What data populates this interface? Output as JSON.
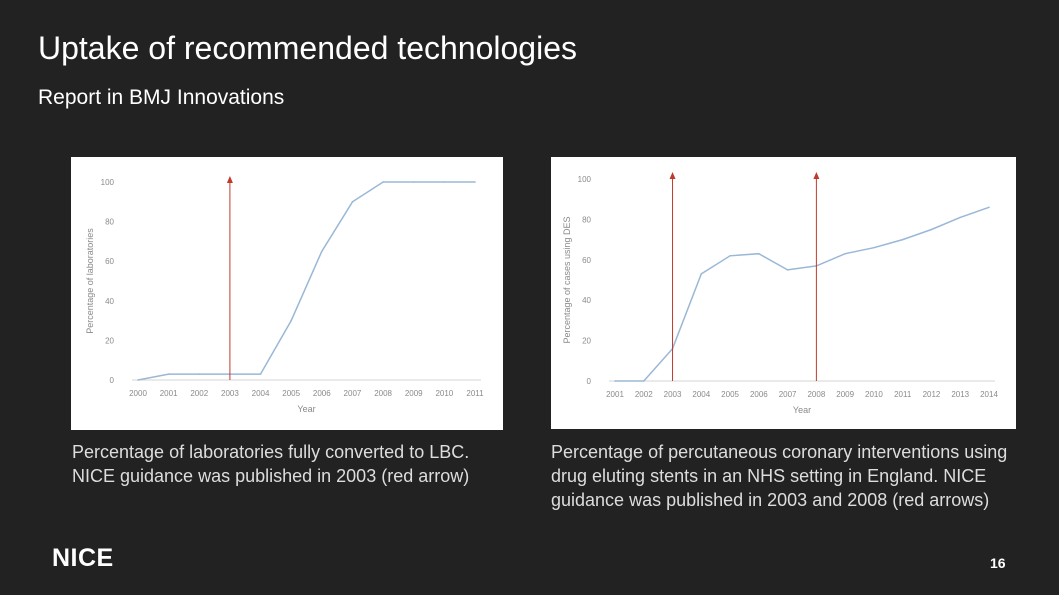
{
  "slide": {
    "title": "Uptake of recommended technologies",
    "subtitle": "Report in BMJ Innovations",
    "logo": "NICE",
    "page_number": "16",
    "caption_left": "Percentage of laboratories fully converted to LBC.  NICE guidance was published in 2003 (red arrow)",
    "caption_right": "Percentage of percutaneous coronary interventions using drug eluting stents in an NHS setting in England. NICE guidance was published in 2003 and 2008 (red arrows)"
  },
  "chart_data": [
    {
      "type": "line",
      "title": "",
      "xlabel": "Year",
      "ylabel": "Percentage of laboratories",
      "x": [
        2000,
        2001,
        2002,
        2003,
        2004,
        2005,
        2006,
        2007,
        2008,
        2009,
        2010,
        2011
      ],
      "series": [
        {
          "values": [
            0,
            3,
            3,
            3,
            3,
            30,
            65,
            90,
            100,
            100,
            100,
            100
          ]
        }
      ],
      "ylim": [
        0,
        100
      ],
      "yticks": [
        0,
        20,
        40,
        60,
        80,
        100
      ],
      "grid": false,
      "line_color": "#9ab8d6",
      "marker_color": "#c0392b",
      "markers": [
        2003
      ]
    },
    {
      "type": "line",
      "title": "",
      "xlabel": "Year",
      "ylabel": "Percentage of cases using DES",
      "x": [
        2001,
        2002,
        2003,
        2004,
        2005,
        2006,
        2007,
        2008,
        2009,
        2010,
        2011,
        2012,
        2013,
        2014
      ],
      "series": [
        {
          "values": [
            0,
            0,
            16,
            53,
            62,
            63,
            55,
            57,
            63,
            66,
            70,
            75,
            81,
            86
          ]
        }
      ],
      "ylim": [
        0,
        100
      ],
      "yticks": [
        0,
        20,
        40,
        60,
        80,
        100
      ],
      "grid": false,
      "line_color": "#9ab8d6",
      "marker_color": "#c0392b",
      "markers": [
        2003,
        2008
      ]
    }
  ]
}
